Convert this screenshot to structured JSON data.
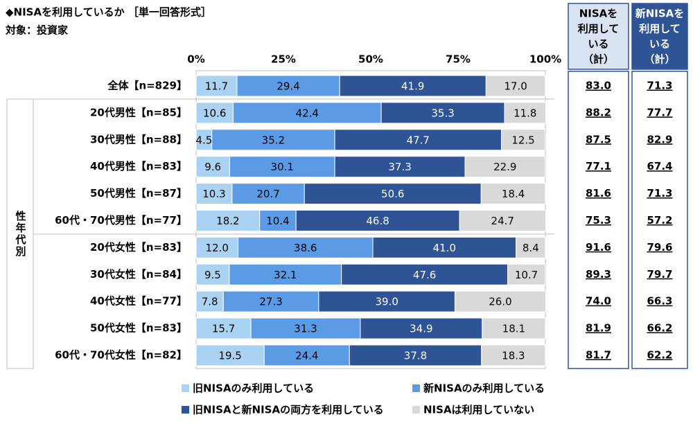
{
  "chart_data": {
    "type": "stacked_barh",
    "title": "◆NISAを利用しているか ［単一回答形式］",
    "subtitle": "対象：投資家",
    "group_label": "性年代別",
    "categories": [
      "全体【n=829】",
      "20代男性【n=85】",
      "30代男性【n=88】",
      "40代男性【n=83】",
      "50代男性【n=87】",
      "60代・70代男性【n=77】",
      "20代女性【n=83】",
      "30代女性【n=84】",
      "40代女性【n=77】",
      "50代女性【n=83】",
      "60代・70代女性【n=82】"
    ],
    "xlim": [
      0,
      100
    ],
    "xticks": [
      {
        "value": 0,
        "label": "0%"
      },
      {
        "value": 25,
        "label": "25%"
      },
      {
        "value": 50,
        "label": "50%"
      },
      {
        "value": 75,
        "label": "75%"
      },
      {
        "value": 100,
        "label": "100%"
      }
    ],
    "grid": false,
    "series": [
      {
        "name": "旧NISAのみ利用している",
        "color": "#a9d2f3",
        "text_color": "#000000",
        "values": [
          11.7,
          10.6,
          4.5,
          9.6,
          10.3,
          18.2,
          12.0,
          9.5,
          7.8,
          15.7,
          19.5
        ],
        "value_labels": [
          "11.7",
          "10.6",
          "4.5",
          "9.6",
          "10.3",
          "18.2",
          "12.0",
          "9.5",
          "7.8",
          "15.7",
          "19.5"
        ]
      },
      {
        "name": "新NISAのみ利用している",
        "color": "#5b9be6",
        "text_color": "#000000",
        "values": [
          29.4,
          42.4,
          35.2,
          30.1,
          20.7,
          10.4,
          38.6,
          32.1,
          27.3,
          31.3,
          24.4
        ],
        "value_labels": [
          "29.4",
          "42.4",
          "35.2",
          "30.1",
          "20.7",
          "10.4",
          "38.6",
          "32.1",
          "27.3",
          "31.3",
          "24.4"
        ]
      },
      {
        "name": "旧NISAと新NISAの両方を利用している",
        "color": "#2f5496",
        "text_color": "#ffffff",
        "values": [
          41.9,
          35.3,
          47.7,
          37.3,
          50.6,
          46.8,
          41.0,
          47.6,
          39.0,
          34.9,
          37.8
        ],
        "value_labels": [
          "41.9",
          "35.3",
          "47.7",
          "37.3",
          "50.6",
          "46.8",
          "41.0",
          "47.6",
          "39.0",
          "34.9",
          "37.8"
        ]
      },
      {
        "name": "NISAは利用していない",
        "color": "#d9d9d9",
        "text_color": "#000000",
        "values": [
          17.0,
          11.8,
          12.5,
          22.9,
          18.4,
          24.7,
          8.4,
          10.7,
          26.0,
          18.1,
          18.3
        ],
        "value_labels": [
          "17.0",
          "11.8",
          "12.5",
          "22.9",
          "18.4",
          "24.7",
          "8.4",
          "10.7",
          "26.0",
          "18.1",
          "18.3"
        ]
      }
    ],
    "totals": [
      {
        "name_lines": [
          "NISAを",
          "利用して",
          "いる",
          "（計）"
        ],
        "header_color": "#dae3f3",
        "header_text_color": "#000000",
        "values": [
          83.0,
          88.2,
          87.5,
          77.1,
          81.6,
          75.3,
          91.6,
          89.3,
          74.0,
          81.9,
          81.7
        ],
        "value_labels": [
          "83.0",
          "88.2",
          "87.5",
          "77.1",
          "81.6",
          "75.3",
          "91.6",
          "89.3",
          "74.0",
          "81.9",
          "81.7"
        ]
      },
      {
        "name_lines": [
          "新NISAを",
          "利用して",
          "いる",
          "（計）"
        ],
        "header_color": "#2f5496",
        "header_text_color": "#ffffff",
        "values": [
          71.3,
          77.7,
          82.9,
          67.4,
          71.3,
          57.2,
          79.6,
          79.7,
          66.3,
          66.2,
          62.2
        ],
        "value_labels": [
          "71.3",
          "77.7",
          "82.9",
          "67.4",
          "71.3",
          "57.2",
          "79.6",
          "79.7",
          "66.3",
          "66.2",
          "62.2"
        ]
      }
    ]
  }
}
